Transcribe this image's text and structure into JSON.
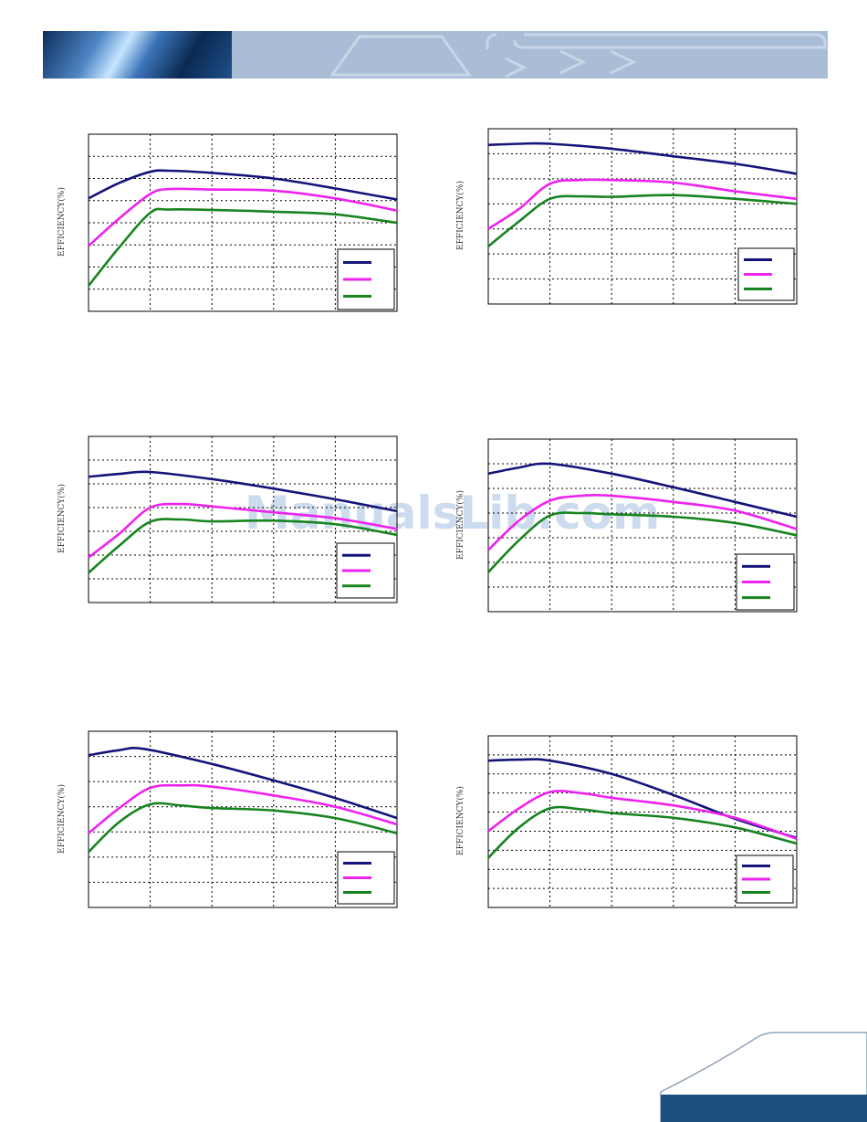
{
  "page": {
    "watermark": "ManualsLib.com",
    "colors": {
      "navy": "#14147a",
      "magenta": "#ee22ee",
      "green": "#17841f",
      "grid": "#000000"
    }
  },
  "chart_data": [
    {
      "type": "line",
      "ylabel": "EFFICIENCY(%)",
      "ylim": [
        0,
        8
      ],
      "xlim": [
        0,
        5
      ],
      "series": [
        {
          "color": "#14147a",
          "x": [
            0,
            0.5,
            1,
            1.3,
            2,
            3,
            4,
            5
          ],
          "y": [
            5.1,
            5.8,
            6.3,
            6.35,
            6.25,
            6.0,
            5.55,
            5.05
          ]
        },
        {
          "color": "#ee22ee",
          "x": [
            0,
            0.5,
            1,
            1.3,
            2,
            3,
            4,
            5
          ],
          "y": [
            2.95,
            4.2,
            5.3,
            5.52,
            5.5,
            5.45,
            5.1,
            4.55
          ]
        },
        {
          "color": "#17841f",
          "x": [
            0,
            0.5,
            1,
            1.3,
            2,
            3,
            4,
            5
          ],
          "y": [
            1.15,
            2.9,
            4.45,
            4.6,
            4.58,
            4.5,
            4.38,
            4.0
          ]
        }
      ]
    },
    {
      "type": "line",
      "ylabel": "EFFICIENCY(%)",
      "ylim": [
        0,
        7
      ],
      "xlim": [
        0,
        5
      ],
      "series": [
        {
          "color": "#14147a",
          "x": [
            0,
            0.5,
            1,
            2,
            3,
            4,
            5
          ],
          "y": [
            6.35,
            6.4,
            6.4,
            6.2,
            5.9,
            5.6,
            5.2
          ]
        },
        {
          "color": "#ee22ee",
          "x": [
            0,
            0.5,
            1,
            1.5,
            2,
            3,
            4,
            5
          ],
          "y": [
            3.0,
            3.8,
            4.8,
            4.95,
            4.95,
            4.85,
            4.5,
            4.2
          ]
        },
        {
          "color": "#17841f",
          "x": [
            0,
            0.5,
            1,
            1.5,
            2,
            3,
            4,
            5
          ],
          "y": [
            2.3,
            3.3,
            4.2,
            4.3,
            4.28,
            4.35,
            4.2,
            4.0
          ]
        }
      ]
    },
    {
      "type": "line",
      "ylabel": "EFFICIENCY(%)",
      "ylim": [
        0,
        7
      ],
      "xlim": [
        0,
        5
      ],
      "series": [
        {
          "color": "#14147a",
          "x": [
            0,
            0.5,
            1,
            2,
            3,
            4,
            5
          ],
          "y": [
            5.3,
            5.42,
            5.5,
            5.2,
            4.8,
            4.35,
            3.85
          ]
        },
        {
          "color": "#ee22ee",
          "x": [
            0,
            0.5,
            1,
            1.5,
            2,
            3,
            4,
            5
          ],
          "y": [
            1.9,
            2.9,
            4.0,
            4.15,
            4.05,
            3.8,
            3.55,
            3.1
          ]
        },
        {
          "color": "#17841f",
          "x": [
            0,
            0.5,
            1,
            1.5,
            2,
            3,
            4,
            5
          ],
          "y": [
            1.25,
            2.4,
            3.4,
            3.5,
            3.42,
            3.45,
            3.3,
            2.85
          ]
        }
      ]
    },
    {
      "type": "line",
      "ylabel": "EFFICIENCY(%)",
      "ylim": [
        0,
        7
      ],
      "xlim": [
        0,
        5
      ],
      "series": [
        {
          "color": "#14147a",
          "x": [
            0,
            0.5,
            1,
            2,
            3,
            4,
            5
          ],
          "y": [
            5.6,
            5.85,
            6.0,
            5.6,
            5.05,
            4.45,
            3.85
          ]
        },
        {
          "color": "#ee22ee",
          "x": [
            0,
            0.5,
            1,
            1.5,
            2,
            3,
            4,
            5
          ],
          "y": [
            2.5,
            3.7,
            4.5,
            4.7,
            4.7,
            4.45,
            4.1,
            3.35
          ]
        },
        {
          "color": "#17841f",
          "x": [
            0,
            0.5,
            1,
            1.5,
            2,
            3,
            4,
            5
          ],
          "y": [
            1.6,
            2.9,
            3.9,
            4.0,
            3.95,
            3.85,
            3.6,
            3.1
          ]
        }
      ]
    },
    {
      "type": "line",
      "ylabel": "EFFICIENCY(%)",
      "ylim": [
        0,
        7
      ],
      "xlim": [
        0,
        5
      ],
      "series": [
        {
          "color": "#14147a",
          "x": [
            0,
            0.5,
            0.9,
            2,
            3,
            4,
            5
          ],
          "y": [
            6.05,
            6.25,
            6.3,
            5.7,
            5.05,
            4.35,
            3.55
          ]
        },
        {
          "color": "#ee22ee",
          "x": [
            0,
            0.5,
            1,
            1.5,
            2,
            3,
            4,
            5
          ],
          "y": [
            2.95,
            3.95,
            4.75,
            4.85,
            4.8,
            4.45,
            4.0,
            3.3
          ]
        },
        {
          "color": "#17841f",
          "x": [
            0,
            0.5,
            1,
            1.5,
            2,
            3,
            4,
            5
          ],
          "y": [
            2.2,
            3.4,
            4.1,
            4.05,
            3.95,
            3.85,
            3.55,
            2.95
          ]
        }
      ]
    },
    {
      "type": "line",
      "ylabel": "EFFICIENCY(%)",
      "ylim": [
        0,
        9
      ],
      "xlim": [
        0,
        5
      ],
      "series": [
        {
          "color": "#14147a",
          "x": [
            0,
            0.5,
            1,
            2,
            3,
            4,
            5
          ],
          "y": [
            7.7,
            7.75,
            7.7,
            7.0,
            5.9,
            4.65,
            3.65
          ]
        },
        {
          "color": "#ee22ee",
          "x": [
            0,
            0.5,
            1,
            1.5,
            2,
            3,
            4,
            5
          ],
          "y": [
            4.0,
            5.2,
            6.05,
            6.0,
            5.75,
            5.35,
            4.7,
            3.6
          ]
        },
        {
          "color": "#17841f",
          "x": [
            0,
            0.5,
            1,
            1.5,
            2,
            3,
            4,
            5
          ],
          "y": [
            2.6,
            4.2,
            5.2,
            5.15,
            4.95,
            4.7,
            4.2,
            3.35
          ]
        }
      ]
    }
  ]
}
